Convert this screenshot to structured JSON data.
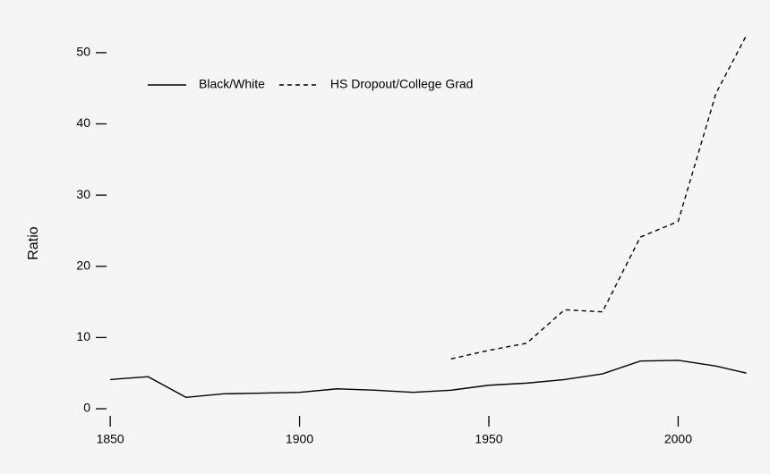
{
  "chart_data": {
    "type": "line",
    "ylabel": "Ratio",
    "x": [
      1850,
      1860,
      1870,
      1880,
      1890,
      1900,
      1910,
      1920,
      1930,
      1940,
      1950,
      1960,
      1970,
      1980,
      1990,
      2000,
      2010,
      2018
    ],
    "series": [
      {
        "name": "Black/White",
        "color": "#000000",
        "dash": "solid",
        "values": [
          4.1,
          4.5,
          1.6,
          2.1,
          2.2,
          2.3,
          2.8,
          2.6,
          2.3,
          2.6,
          3.3,
          3.6,
          4.1,
          4.9,
          6.7,
          6.8,
          6.0,
          5.0
        ]
      },
      {
        "name": "HS Dropout/College Grad",
        "color": "#000000",
        "dash": "dashed",
        "values": [
          null,
          null,
          null,
          null,
          null,
          null,
          null,
          null,
          null,
          7.0,
          8.2,
          9.2,
          13.9,
          13.6,
          24.1,
          26.3,
          44.3,
          52.4
        ]
      }
    ],
    "xlim": [
      1845,
      2020
    ],
    "xticks": [
      1850,
      1900,
      1950,
      2000
    ],
    "ylim": [
      -1,
      53
    ],
    "yticks": [
      0,
      10,
      20,
      30,
      40,
      50
    ],
    "legend": "top-left"
  }
}
